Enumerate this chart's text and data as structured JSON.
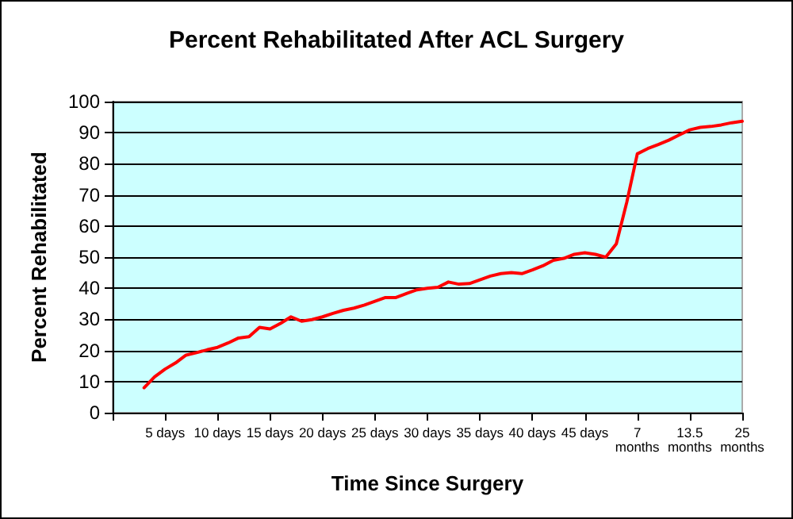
{
  "chart_data": {
    "type": "line",
    "title": "Percent Rehabilitated After ACL Surgery",
    "xlabel": "Time Since Surgery",
    "ylabel": "Percent Rehabilitated",
    "categories": [
      null,
      null,
      null,
      null,
      null,
      "5 days",
      null,
      null,
      null,
      null,
      "10 days",
      null,
      null,
      null,
      null,
      "15 days",
      null,
      null,
      null,
      null,
      "20 days",
      null,
      null,
      null,
      null,
      "25 days",
      null,
      null,
      null,
      null,
      "30 days",
      null,
      null,
      null,
      null,
      "35 days",
      null,
      null,
      null,
      null,
      "40 days",
      null,
      null,
      null,
      null,
      "45 days",
      null,
      null,
      null,
      null,
      "7 months",
      null,
      null,
      null,
      null,
      "13.5 months",
      null,
      null,
      null,
      null,
      "25 months"
    ],
    "series": [
      {
        "color": "#ff0000",
        "values": [
          null,
          null,
          null,
          8,
          11.5,
          14,
          16,
          18.5,
          19.3,
          20.2,
          21,
          22.4,
          24,
          24.4,
          27.4,
          26.9,
          28.7,
          30.8,
          29.4,
          29.9,
          30.8,
          31.9,
          32.9,
          33.6,
          34.6,
          35.8,
          37,
          37,
          38.3,
          39.5,
          40,
          40.3,
          42,
          41.3,
          41.5,
          42.7,
          43.9,
          44.7,
          45,
          44.7,
          45.9,
          47.2,
          49,
          49.6,
          50.9,
          51.4,
          50.9,
          50,
          54.3,
          67.7,
          83.2,
          84.9,
          86.2,
          87.6,
          89.3,
          90.9,
          91.7,
          92,
          92.5,
          93.2,
          93.7
        ]
      }
    ],
    "ylim": [
      0,
      100
    ],
    "yticks": [
      0,
      10,
      20,
      30,
      40,
      50,
      60,
      70,
      80,
      90,
      100
    ],
    "grid": "y",
    "marker": "none",
    "line_style": "solid"
  }
}
